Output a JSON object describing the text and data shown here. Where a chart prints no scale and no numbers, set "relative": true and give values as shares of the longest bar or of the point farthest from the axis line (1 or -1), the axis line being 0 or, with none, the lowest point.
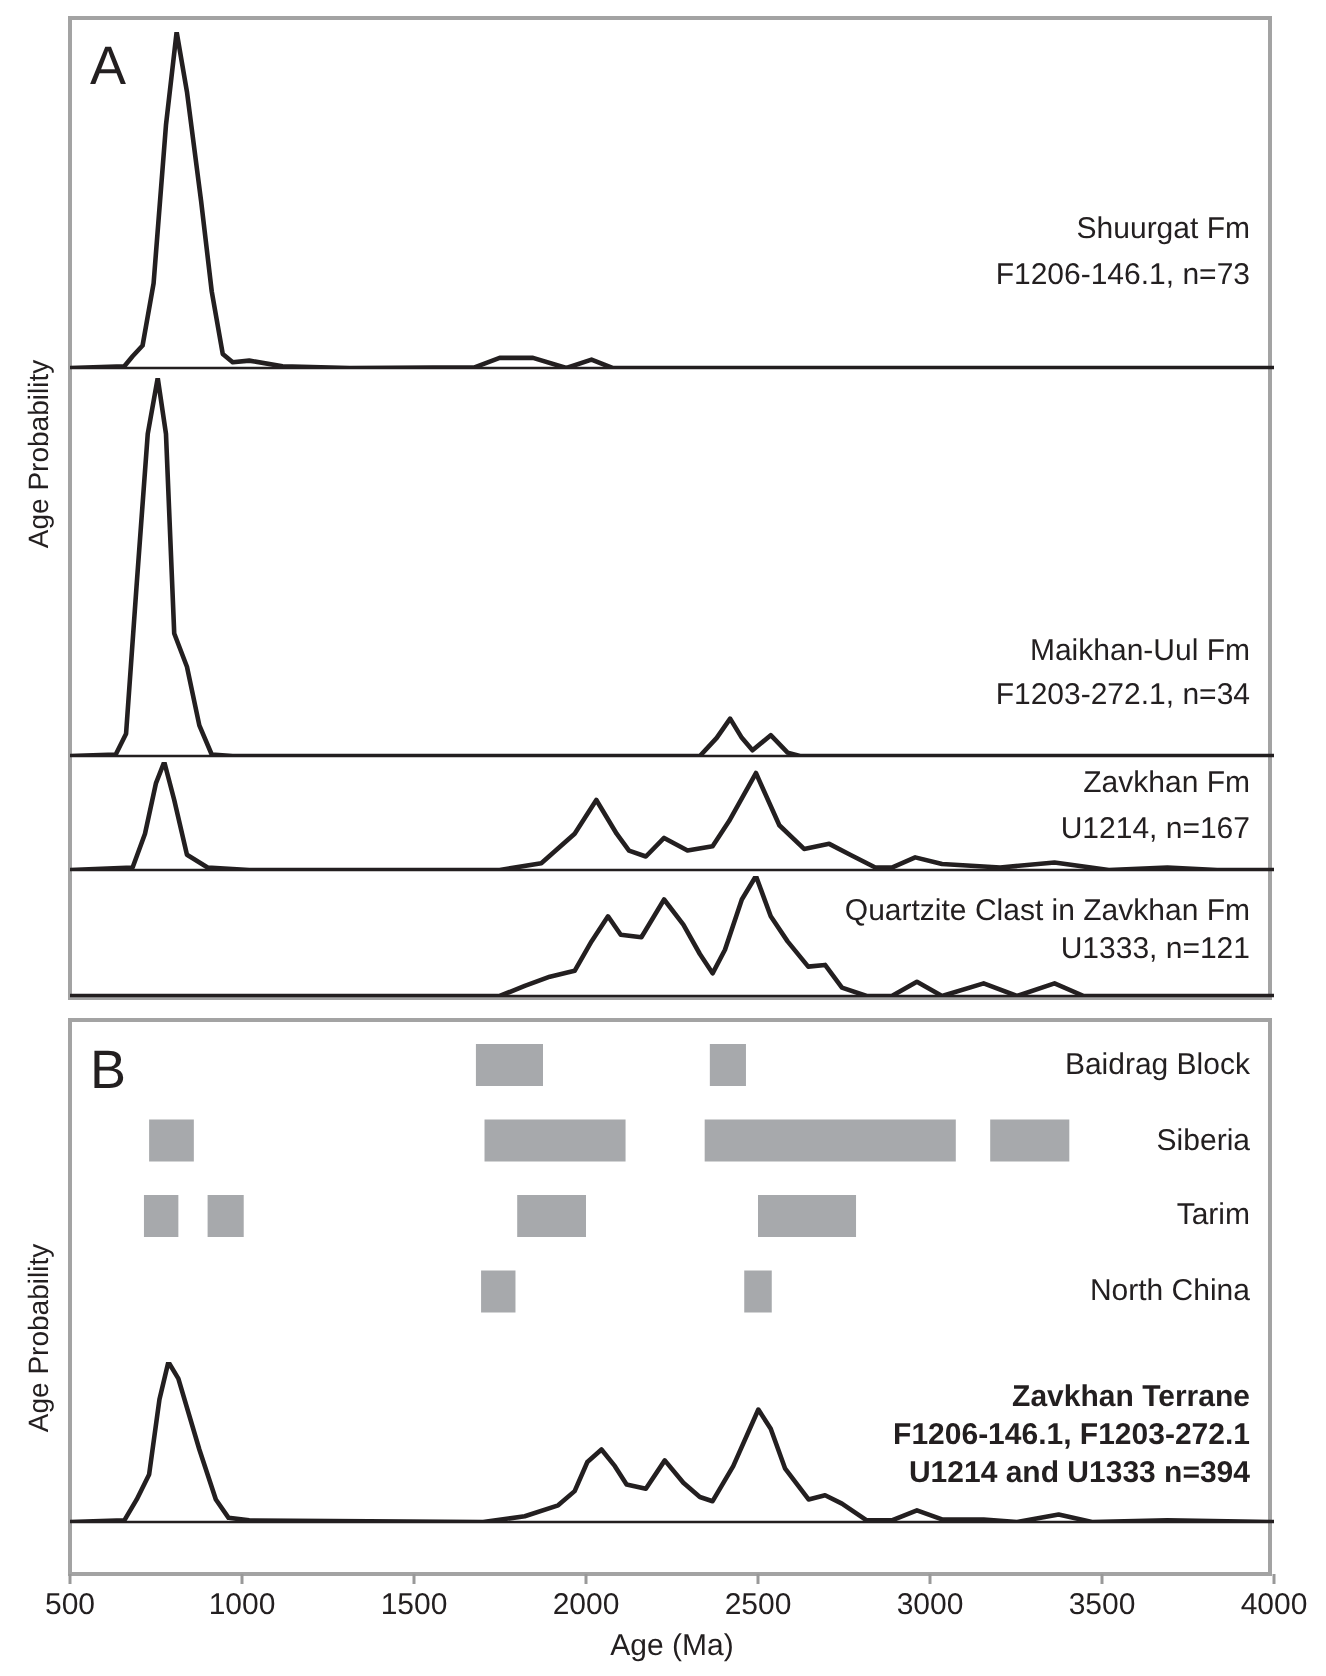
{
  "chart_data": [
    {
      "type": "line",
      "relative": true,
      "xlim": [
        500,
        4000
      ],
      "tick_labels": false,
      "ylabel": "Age Probability",
      "annotations": [
        "A",
        "Shuurgat Fm",
        "F1206-146.1, n=73"
      ],
      "series": [
        {
          "color": "#231f20",
          "x": [
            500,
            658,
            682,
            711,
            743,
            779,
            810,
            840,
            881,
            912,
            944,
            973,
            1021,
            1118,
            1313,
            1676,
            1749,
            1846,
            1943,
            2016,
            2077,
            4000
          ],
          "values": [
            0,
            0.005,
            0.035,
            0.067,
            0.252,
            0.723,
            1,
            0.822,
            0.498,
            0.228,
            0.042,
            0.017,
            0.022,
            0.005,
            0,
            0.002,
            0.03,
            0.03,
            0,
            0.025,
            0,
            0
          ]
        }
      ]
    },
    {
      "type": "line",
      "relative": true,
      "xlim": [
        500,
        4000
      ],
      "tick_labels": false,
      "annotations": [
        "Maikhan-Uul Fm",
        "F1203-272.1, n=34"
      ],
      "series": [
        {
          "color": "#231f20",
          "x": [
            500,
            633,
            663,
            694,
            726,
            755,
            779,
            803,
            840,
            876,
            912,
            973,
            2331,
            2380,
            2419,
            2453,
            2484,
            2537,
            2586,
            2622,
            4000
          ],
          "values": [
            0,
            0.004,
            0.059,
            0.456,
            0.852,
            1,
            0.852,
            0.324,
            0.236,
            0.081,
            0.004,
            0,
            0,
            0.048,
            0.099,
            0.048,
            0.015,
            0.055,
            0.009,
            0,
            0
          ]
        }
      ]
    },
    {
      "type": "line",
      "relative": true,
      "xlim": [
        500,
        4000
      ],
      "tick_labels": false,
      "annotations": [
        "Zavkhan Fm",
        "U1214, n=167"
      ],
      "series": [
        {
          "color": "#231f20",
          "x": [
            500,
            682,
            718,
            750,
            774,
            803,
            840,
            900,
            1021,
            1749,
            1870,
            1967,
            2030,
            2089,
            2125,
            2174,
            2227,
            2295,
            2368,
            2416,
            2494,
            2562,
            2634,
            2707,
            2768,
            2841,
            2889,
            2957,
            3035,
            3204,
            3362,
            3520,
            3690,
            3835,
            4000
          ],
          "values": [
            0,
            0.023,
            0.336,
            0.805,
            1,
            0.648,
            0.141,
            0.023,
            0,
            0,
            0.063,
            0.336,
            0.648,
            0.336,
            0.18,
            0.125,
            0.297,
            0.18,
            0.219,
            0.453,
            0.898,
            0.414,
            0.195,
            0.242,
            0.141,
            0.023,
            0.023,
            0.117,
            0.055,
            0.023,
            0.07,
            0,
            0.023,
            0,
            0
          ]
        }
      ]
    },
    {
      "type": "line",
      "relative": true,
      "xlim": [
        500,
        4000
      ],
      "tick_labels": false,
      "annotations": [
        "Quartzite Clast in Zavkhan Fm",
        "U1333, n=121"
      ],
      "series": [
        {
          "color": "#231f20",
          "x": [
            500,
            1749,
            1822,
            1895,
            1967,
            2016,
            2064,
            2101,
            2161,
            2227,
            2283,
            2331,
            2368,
            2404,
            2453,
            2494,
            2537,
            2586,
            2646,
            2695,
            2744,
            2816,
            2889,
            2962,
            3035,
            3156,
            3253,
            3362,
            3447,
            4000
          ],
          "values": [
            0,
            0,
            0.084,
            0.161,
            0.21,
            0.455,
            0.664,
            0.51,
            0.49,
            0.804,
            0.594,
            0.35,
            0.189,
            0.385,
            0.804,
            1,
            0.664,
            0.455,
            0.245,
            0.259,
            0.07,
            0,
            0,
            0.119,
            0,
            0.105,
            0,
            0.105,
            0,
            0
          ]
        }
      ]
    },
    {
      "type": "bar",
      "orientation": "horizontal",
      "xlim": [
        500,
        4000
      ],
      "tick_labels": "y",
      "annotations": [
        "B"
      ],
      "categories": [
        "Baidrag Block",
        "Siberia",
        "Tarim",
        "North China"
      ],
      "series": [
        {
          "color": "#a7a9ac",
          "base": [
            1680,
            730,
            715,
            1695
          ],
          "values": [
            195,
            130,
            100,
            100
          ]
        },
        {
          "color": "#a7a9ac",
          "base": [
            2360,
            1705,
            900,
            2460
          ],
          "values": [
            105,
            410,
            105,
            80
          ]
        },
        {
          "color": "#a7a9ac",
          "base": [
            null,
            2345,
            1800,
            null
          ],
          "values": [
            null,
            730,
            200,
            null
          ]
        },
        {
          "color": "#a7a9ac",
          "base": [
            null,
            3175,
            2500,
            null
          ],
          "values": [
            null,
            230,
            285,
            null
          ]
        }
      ]
    },
    {
      "type": "line",
      "relative": true,
      "xlim": [
        500,
        4000
      ],
      "xticks": [
        500,
        1000,
        1500,
        2000,
        2500,
        3000,
        3500,
        4000
      ],
      "tick_labels": "x",
      "xlabel": "Age (Ma)",
      "ylabel": "Age Probability",
      "annotations": [
        "Zavkhan Terrane",
        "F1206-146.1, F1203-272.1",
        "U1214 and U1333 n=394"
      ],
      "series": [
        {
          "color": "#231f20",
          "x": [
            500,
            658,
            694,
            730,
            760,
            786,
            815,
            876,
            924,
            961,
            1021,
            1701,
            1822,
            1919,
            1967,
            2004,
            2045,
            2084,
            2118,
            2174,
            2229,
            2283,
            2331,
            2368,
            2428,
            2501,
            2537,
            2579,
            2647,
            2695,
            2744,
            2816,
            2889,
            2962,
            3035,
            3156,
            3253,
            3374,
            3471,
            3690,
            4000
          ],
          "values": [
            0,
            0.01,
            0.141,
            0.297,
            0.766,
            1,
            0.896,
            0.453,
            0.141,
            0.026,
            0.01,
            0,
            0.036,
            0.104,
            0.193,
            0.375,
            0.453,
            0.349,
            0.234,
            0.208,
            0.385,
            0.245,
            0.156,
            0.13,
            0.349,
            0.703,
            0.583,
            0.333,
            0.141,
            0.167,
            0.115,
            0.01,
            0.01,
            0.073,
            0.016,
            0.016,
            0,
            0.047,
            0,
            0.01,
            0
          ]
        }
      ]
    }
  ]
}
